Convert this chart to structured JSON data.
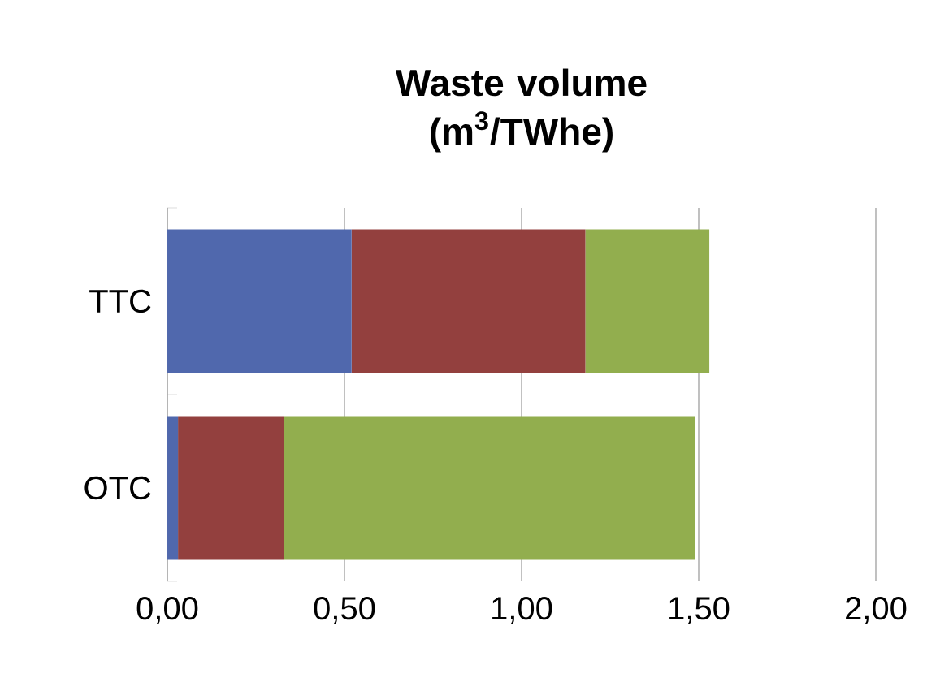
{
  "chart_data": {
    "type": "bar",
    "orientation": "horizontal",
    "stacked": true,
    "title": "Waste volume (m$^{3}$/TWhe)",
    "categories": [
      "TTC",
      "OTC"
    ],
    "series": [
      {
        "color": "#5068ad",
        "values": [
          0.52,
          0.03
        ]
      },
      {
        "color": "#93403e",
        "values": [
          0.66,
          0.3
        ]
      },
      {
        "color": "#92ae4e",
        "values": [
          0.35,
          1.16
        ]
      }
    ],
    "xlim": [
      0,
      2
    ],
    "xticks": [
      {
        "value": 0,
        "label": "0,00"
      },
      {
        "value": 0.5,
        "label": "0,50"
      },
      {
        "value": 1,
        "label": "1,00"
      },
      {
        "value": 1.5,
        "label": "1,50"
      },
      {
        "value": 2,
        "label": "2,00"
      }
    ],
    "grid": "x"
  }
}
